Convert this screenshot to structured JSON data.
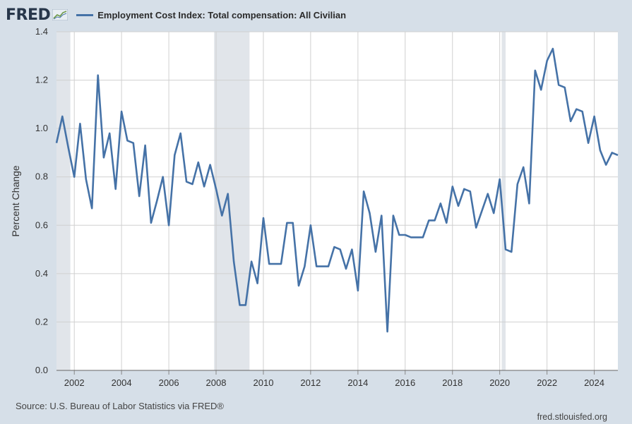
{
  "header": {
    "logo_text": "FRED",
    "logo_icon": "trend-chart-icon",
    "legend_label": "Employment Cost Index: Total compensation: All Civilian"
  },
  "footer": {
    "source": "Source: U.S. Bureau of Labor Statistics via FRED®",
    "site": "fred.stlouisfed.org"
  },
  "colors": {
    "series": "#4572a7",
    "plot_background": "#ffffff",
    "page_background": "#d6dfe8",
    "recession_shading": "#e1e5ea",
    "grid": "#d0d0d0"
  },
  "chart_data": {
    "type": "line",
    "title": "",
    "xlabel": "",
    "ylabel": "Percent Change",
    "xlim": [
      "2001-04-01",
      "2024-12-31"
    ],
    "ylim": [
      0,
      1.4
    ],
    "yticks": [
      0.0,
      0.2,
      0.4,
      0.6,
      0.8,
      1.0,
      1.2,
      1.4
    ],
    "ytick_labels": [
      "0.0",
      "0.2",
      "0.4",
      "0.6",
      "0.8",
      "1.0",
      "1.2",
      "1.4"
    ],
    "xticks": [
      "2002-01-01",
      "2004-01-01",
      "2006-01-01",
      "2008-01-01",
      "2010-01-01",
      "2012-01-01",
      "2014-01-01",
      "2016-01-01",
      "2018-01-01",
      "2020-01-01",
      "2022-01-01",
      "2024-01-01"
    ],
    "xtick_labels": [
      "2002",
      "2004",
      "2006",
      "2008",
      "2010",
      "2012",
      "2014",
      "2016",
      "2018",
      "2020",
      "2022",
      "2024"
    ],
    "grid": true,
    "legend": "top-left",
    "recessions": [
      {
        "start": "2001-04-01",
        "end": "2001-11-01"
      },
      {
        "start": "2007-12-01",
        "end": "2009-06-01"
      },
      {
        "start": "2020-02-01",
        "end": "2020-04-01"
      }
    ],
    "series": [
      {
        "name": "Employment Cost Index: Total compensation: All Civilian",
        "x": [
          "2001-04-01",
          "2001-07-01",
          "2001-10-01",
          "2002-01-01",
          "2002-04-01",
          "2002-07-01",
          "2002-10-01",
          "2003-01-01",
          "2003-04-01",
          "2003-07-01",
          "2003-10-01",
          "2004-01-01",
          "2004-04-01",
          "2004-07-01",
          "2004-10-01",
          "2005-01-01",
          "2005-04-01",
          "2005-07-01",
          "2005-10-01",
          "2006-01-01",
          "2006-04-01",
          "2006-07-01",
          "2006-10-01",
          "2007-01-01",
          "2007-04-01",
          "2007-07-01",
          "2007-10-01",
          "2008-01-01",
          "2008-04-01",
          "2008-07-01",
          "2008-10-01",
          "2009-01-01",
          "2009-04-01",
          "2009-07-01",
          "2009-10-01",
          "2010-01-01",
          "2010-04-01",
          "2010-07-01",
          "2010-10-01",
          "2011-01-01",
          "2011-04-01",
          "2011-07-01",
          "2011-10-01",
          "2012-01-01",
          "2012-04-01",
          "2012-07-01",
          "2012-10-01",
          "2013-01-01",
          "2013-04-01",
          "2013-07-01",
          "2013-10-01",
          "2014-01-01",
          "2014-04-01",
          "2014-07-01",
          "2014-10-01",
          "2015-01-01",
          "2015-04-01",
          "2015-07-01",
          "2015-10-01",
          "2016-01-01",
          "2016-04-01",
          "2016-07-01",
          "2016-10-01",
          "2017-01-01",
          "2017-04-01",
          "2017-07-01",
          "2017-10-01",
          "2018-01-01",
          "2018-04-01",
          "2018-07-01",
          "2018-10-01",
          "2019-01-01",
          "2019-04-01",
          "2019-07-01",
          "2019-10-01",
          "2020-01-01",
          "2020-04-01",
          "2020-07-01",
          "2020-10-01",
          "2021-01-01",
          "2021-04-01",
          "2021-07-01",
          "2021-10-01",
          "2022-01-01",
          "2022-04-01",
          "2022-07-01",
          "2022-10-01",
          "2023-01-01",
          "2023-04-01",
          "2023-07-01",
          "2023-10-01",
          "2024-01-01",
          "2024-04-01",
          "2024-07-01",
          "2024-10-01",
          "2024-12-31"
        ],
        "values": [
          0.94,
          1.05,
          0.92,
          0.8,
          1.02,
          0.79,
          0.67,
          1.22,
          0.88,
          0.98,
          0.75,
          1.07,
          0.95,
          0.94,
          0.72,
          0.93,
          0.61,
          0.7,
          0.8,
          0.6,
          0.89,
          0.98,
          0.78,
          0.77,
          0.86,
          0.76,
          0.85,
          0.75,
          0.64,
          0.73,
          0.45,
          0.27,
          0.27,
          0.45,
          0.36,
          0.63,
          0.44,
          0.44,
          0.44,
          0.61,
          0.61,
          0.35,
          0.43,
          0.6,
          0.43,
          0.43,
          0.43,
          0.51,
          0.5,
          0.42,
          0.5,
          0.33,
          0.74,
          0.65,
          0.49,
          0.64,
          0.16,
          0.64,
          0.56,
          0.56,
          0.55,
          0.55,
          0.55,
          0.62,
          0.62,
          0.69,
          0.61,
          0.76,
          0.68,
          0.75,
          0.74,
          0.59,
          0.66,
          0.73,
          0.65,
          0.79,
          0.5,
          0.49,
          0.77,
          0.84,
          0.69,
          1.24,
          1.16,
          1.28,
          1.33,
          1.18,
          1.17,
          1.03,
          1.08,
          1.07,
          0.94,
          1.05,
          0.91,
          0.85,
          0.9,
          0.89
        ]
      }
    ]
  }
}
